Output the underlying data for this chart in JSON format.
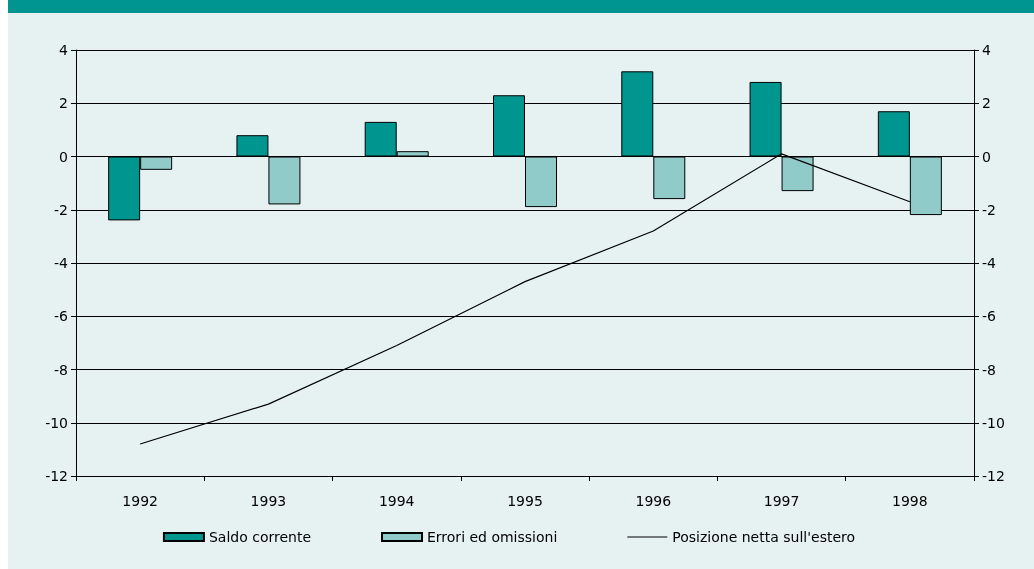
{
  "chart_data": {
    "type": "bar",
    "categories": [
      "1992",
      "1993",
      "1994",
      "1995",
      "1996",
      "1997",
      "1998"
    ],
    "series": [
      {
        "name": "Saldo corrente",
        "color": "#009690",
        "values": [
          -2.4,
          0.8,
          1.3,
          2.3,
          3.2,
          2.8,
          1.7
        ]
      },
      {
        "name": "Errori ed omissioni",
        "color": "#90cbc9",
        "values": [
          -0.5,
          -1.8,
          0.2,
          -1.9,
          -1.6,
          -1.3,
          -2.2
        ]
      },
      {
        "name": "Posizione netta sull'estero",
        "type": "line",
        "color": "#000000",
        "values": [
          -10.8,
          -9.3,
          -7.1,
          -4.7,
          -2.8,
          0.1,
          -1.7
        ]
      }
    ],
    "ylim": [
      -12,
      4
    ],
    "yticks": [
      -12,
      -10,
      -8,
      -6,
      -4,
      -2,
      0,
      2,
      4
    ],
    "y2lim": [
      -12,
      4
    ],
    "y2ticks": [
      -12,
      -10,
      -8,
      -6,
      -4,
      -2,
      0,
      2,
      4
    ],
    "grid": "y",
    "legend": "bottom",
    "marker": "none",
    "line_style": "solid"
  }
}
